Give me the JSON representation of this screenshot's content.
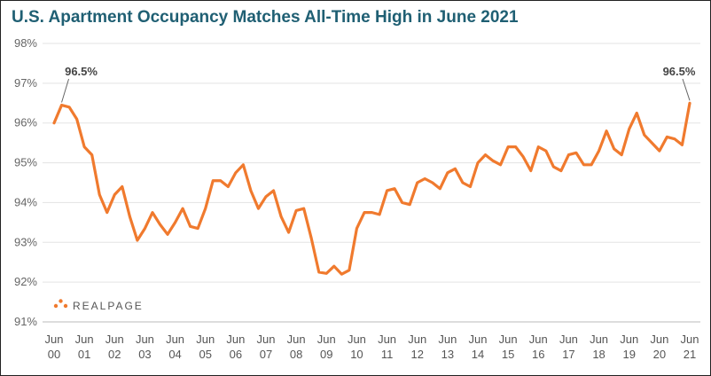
{
  "chart_data": {
    "type": "line",
    "title": "U.S. Apartment Occupancy Matches All-Time High in June 2021",
    "xlabel": "",
    "ylabel": "",
    "ylim": [
      91,
      98
    ],
    "y_ticks": [
      "98%",
      "97%",
      "96%",
      "95%",
      "94%",
      "93%",
      "92%",
      "91%"
    ],
    "x_ticks": [
      [
        "Jun",
        "00"
      ],
      [
        "Jun",
        "01"
      ],
      [
        "Jun",
        "02"
      ],
      [
        "Jun",
        "03"
      ],
      [
        "Jun",
        "04"
      ],
      [
        "Jun",
        "05"
      ],
      [
        "Jun",
        "06"
      ],
      [
        "Jun",
        "07"
      ],
      [
        "Jun",
        "08"
      ],
      [
        "Jun",
        "09"
      ],
      [
        "Jun",
        "10"
      ],
      [
        "Jun",
        "11"
      ],
      [
        "Jun",
        "12"
      ],
      [
        "Jun",
        "13"
      ],
      [
        "Jun",
        "14"
      ],
      [
        "Jun",
        "15"
      ],
      [
        "Jun",
        "16"
      ],
      [
        "Jun",
        "17"
      ],
      [
        "Jun",
        "18"
      ],
      [
        "Jun",
        "19"
      ],
      [
        "Jun",
        "20"
      ],
      [
        "Jun",
        "21"
      ]
    ],
    "grid": "horizontal",
    "series": [
      {
        "color": "#f07a2e",
        "values": [
          96.0,
          96.45,
          96.4,
          96.1,
          95.4,
          95.2,
          94.2,
          93.75,
          94.2,
          94.4,
          93.65,
          93.05,
          93.35,
          93.75,
          93.45,
          93.2,
          93.5,
          93.85,
          93.4,
          93.35,
          93.85,
          94.55,
          94.55,
          94.4,
          94.75,
          94.95,
          94.3,
          93.85,
          94.15,
          94.3,
          93.65,
          93.25,
          93.8,
          93.85,
          93.1,
          92.25,
          92.22,
          92.4,
          92.2,
          92.3,
          93.35,
          93.75,
          93.75,
          93.7,
          94.3,
          94.35,
          94.0,
          93.95,
          94.5,
          94.6,
          94.5,
          94.35,
          94.75,
          94.85,
          94.5,
          94.4,
          95.0,
          95.2,
          95.05,
          94.95,
          95.4,
          95.4,
          95.15,
          94.8,
          95.4,
          95.3,
          94.9,
          94.8,
          95.2,
          95.25,
          94.95,
          94.95,
          95.3,
          95.8,
          95.35,
          95.2,
          95.85,
          96.25,
          95.7,
          95.5,
          95.3,
          95.65,
          95.6,
          95.45,
          96.5
        ]
      }
    ],
    "annotations": [
      {
        "text": "96.5%",
        "index": 1
      },
      {
        "text": "96.5%",
        "index": 84
      }
    ]
  },
  "logo": {
    "text": "REALPAGE",
    "color": "#f07a2e"
  }
}
